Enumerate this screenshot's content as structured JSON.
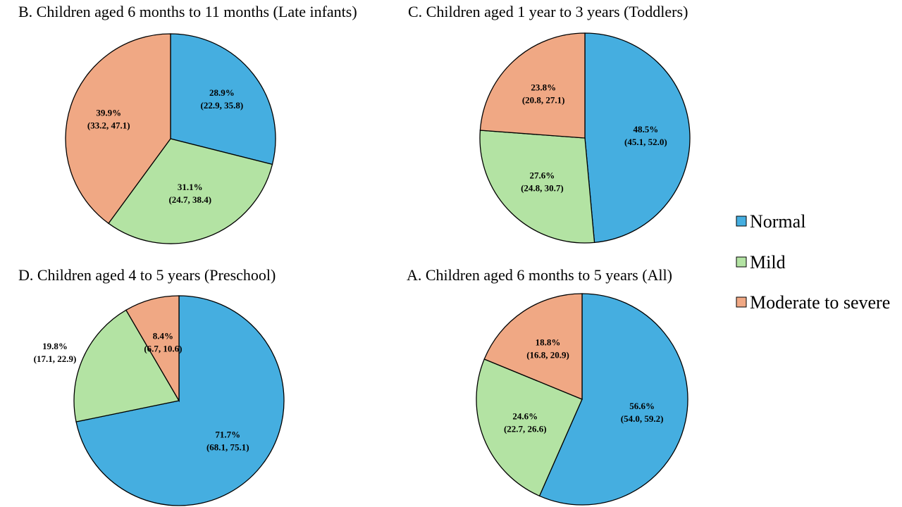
{
  "colors": {
    "Normal": "#45aee0",
    "Mild": "#b3e3a3",
    "Moderate to severe": "#f0a884",
    "outline": "#000000"
  },
  "legend": {
    "items": [
      "Normal",
      "Mild",
      "Moderate to severe"
    ]
  },
  "chart_data": [
    {
      "type": "pie",
      "title": "B. Children aged 6 months to 11 months (Late infants)",
      "slices": [
        {
          "name": "Normal",
          "value": 28.9,
          "ci": "(22.9, 35.8)"
        },
        {
          "name": "Mild",
          "value": 31.1,
          "ci": "(24.7, 38.4)"
        },
        {
          "name": "Moderate to severe",
          "value": 39.9,
          "ci": "(33.2, 47.1)"
        }
      ]
    },
    {
      "type": "pie",
      "title": "C. Children aged 1 year to 3 years (Toddlers)",
      "slices": [
        {
          "name": "Normal",
          "value": 48.5,
          "ci": "(45.1, 52.0)"
        },
        {
          "name": "Mild",
          "value": 27.6,
          "ci": "(24.8, 30.7)"
        },
        {
          "name": "Moderate to severe",
          "value": 23.8,
          "ci": "(20.8, 27.1)"
        }
      ]
    },
    {
      "type": "pie",
      "title": "D. Children aged 4 to 5 years (Preschool)",
      "slices": [
        {
          "name": "Normal",
          "value": 71.7,
          "ci": "(68.1, 75.1)"
        },
        {
          "name": "Mild",
          "value": 19.8,
          "ci": "(17.1, 22.9)"
        },
        {
          "name": "Moderate to severe",
          "value": 8.4,
          "ci": "(6.7, 10.6)"
        }
      ]
    },
    {
      "type": "pie",
      "title": "A. Children aged 6 months to 5 years (All)",
      "slices": [
        {
          "name": "Normal",
          "value": 56.6,
          "ci": "(54.0, 59.2)"
        },
        {
          "name": "Mild",
          "value": 24.6,
          "ci": "(22.7, 26.6)"
        },
        {
          "name": "Moderate to severe",
          "value": 18.8,
          "ci": "(16.8, 20.9)"
        }
      ]
    }
  ]
}
